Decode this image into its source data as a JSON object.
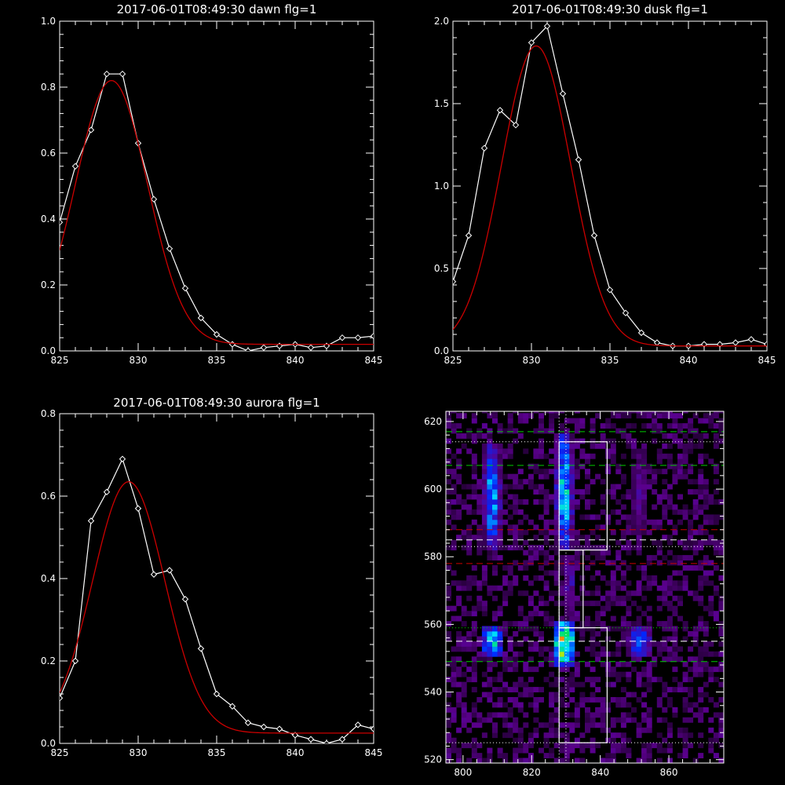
{
  "chart_data": [
    {
      "type": "line",
      "title": "2017-06-01T08:49:30 dawn flg=1",
      "xlim": [
        825,
        845
      ],
      "ylim": [
        0,
        1.0
      ],
      "xticks": [
        825,
        830,
        835,
        840,
        845
      ],
      "yticks": [
        0.0,
        0.2,
        0.4,
        0.6,
        0.8,
        1.0
      ],
      "xtick_labels": [
        "825",
        "830",
        "835",
        "840",
        "845"
      ],
      "ytick_labels": [
        "0.0",
        "0.2",
        "0.4",
        "0.6",
        "0.8",
        "1.0"
      ],
      "grid": false,
      "series": [
        {
          "color": "#ffffff",
          "marker": "diamond",
          "x": [
            825,
            826,
            827,
            828,
            829,
            830,
            831,
            832,
            833,
            834,
            835,
            836,
            837,
            838,
            839,
            840,
            841,
            842,
            843,
            844,
            845
          ],
          "y": [
            0.39,
            0.56,
            0.67,
            0.84,
            0.84,
            0.63,
            0.46,
            0.31,
            0.19,
            0.1,
            0.05,
            0.02,
            0.0,
            0.01,
            0.015,
            0.02,
            0.01,
            0.015,
            0.04,
            0.04,
            0.045
          ]
        },
        {
          "color": "#cc0000",
          "marker": "none",
          "fit": {
            "amplitude": 0.8,
            "center": 828.3,
            "sigma": 2.3,
            "baseline": 0.02
          }
        }
      ]
    },
    {
      "type": "line",
      "title": "2017-06-01T08:49:30 dusk flg=1",
      "xlim": [
        825,
        845
      ],
      "ylim": [
        0,
        2.0
      ],
      "xticks": [
        825,
        830,
        835,
        840,
        845
      ],
      "yticks": [
        0.0,
        0.5,
        1.0,
        1.5,
        2.0
      ],
      "xtick_labels": [
        "825",
        "830",
        "835",
        "840",
        "845"
      ],
      "ytick_labels": [
        "0.0",
        "0.5",
        "1.0",
        "1.5",
        "2.0"
      ],
      "grid": false,
      "series": [
        {
          "color": "#ffffff",
          "marker": "diamond",
          "x": [
            825,
            826,
            827,
            828,
            829,
            830,
            831,
            832,
            833,
            834,
            835,
            836,
            837,
            838,
            839,
            840,
            841,
            842,
            843,
            844,
            845
          ],
          "y": [
            0.42,
            0.7,
            1.23,
            1.46,
            1.37,
            1.87,
            1.97,
            1.56,
            1.16,
            0.7,
            0.37,
            0.23,
            0.11,
            0.05,
            0.03,
            0.03,
            0.04,
            0.04,
            0.05,
            0.07,
            0.04
          ]
        },
        {
          "color": "#cc0000",
          "marker": "none",
          "fit": {
            "amplitude": 1.82,
            "center": 830.3,
            "sigma": 2.2,
            "baseline": 0.03
          }
        }
      ]
    },
    {
      "type": "line",
      "title": "2017-06-01T08:49:30 aurora flg=1",
      "xlim": [
        825,
        845
      ],
      "ylim": [
        0,
        0.8
      ],
      "xticks": [
        825,
        830,
        835,
        840,
        845
      ],
      "yticks": [
        0.0,
        0.2,
        0.4,
        0.6,
        0.8
      ],
      "xtick_labels": [
        "825",
        "830",
        "835",
        "840",
        "845"
      ],
      "ytick_labels": [
        "0.0",
        "0.2",
        "0.4",
        "0.6",
        "0.8"
      ],
      "grid": false,
      "series": [
        {
          "color": "#ffffff",
          "marker": "diamond",
          "x": [
            825,
            826,
            827,
            828,
            829,
            830,
            831,
            832,
            833,
            834,
            835,
            836,
            837,
            838,
            839,
            840,
            841,
            842,
            843,
            844,
            845
          ],
          "y": [
            0.11,
            0.2,
            0.54,
            0.61,
            0.69,
            0.57,
            0.41,
            0.42,
            0.35,
            0.23,
            0.12,
            0.09,
            0.05,
            0.04,
            0.035,
            0.02,
            0.01,
            0.0,
            0.01,
            0.045,
            0.035
          ]
        },
        {
          "color": "#cc0000",
          "marker": "none",
          "fit": {
            "amplitude": 0.61,
            "center": 829.4,
            "sigma": 2.3,
            "baseline": 0.025
          }
        }
      ]
    },
    {
      "type": "heatmap",
      "title": "",
      "xlim": [
        795,
        876
      ],
      "ylim": [
        519,
        623
      ],
      "xticks": [
        800,
        820,
        840,
        860
      ],
      "yticks": [
        520,
        540,
        560,
        580,
        600,
        620
      ],
      "xtick_labels": [
        "800",
        "820",
        "840",
        "860"
      ],
      "ytick_labels": [
        "520",
        "540",
        "560",
        "580",
        "600",
        "620"
      ],
      "grid": false,
      "colormap": "rainbow-on-black",
      "blobs": [
        {
          "x0": 806,
          "x1": 811,
          "y0": 582,
          "y1": 614,
          "intensity": 0.55
        },
        {
          "x0": 827,
          "x1": 832,
          "y0": 582,
          "y1": 616,
          "intensity": 0.65
        },
        {
          "x0": 849,
          "x1": 854,
          "y0": 586,
          "y1": 612,
          "intensity": 0.2
        },
        {
          "x0": 805,
          "x1": 812,
          "y0": 550,
          "y1": 560,
          "intensity": 0.65
        },
        {
          "x0": 826,
          "x1": 833,
          "y0": 548,
          "y1": 561,
          "intensity": 0.95
        },
        {
          "x0": 848,
          "x1": 855,
          "y0": 550,
          "y1": 560,
          "intensity": 0.45
        },
        {
          "x0": 829,
          "x1": 833,
          "y0": 561,
          "y1": 581,
          "intensity": 0.25
        }
      ],
      "dotted_vertical_lines": {
        "color": "#ffffff",
        "x": [
          828,
          830
        ]
      },
      "dotted_horizontal_lines": [
        {
          "color": "#ffffff",
          "y": 614
        },
        {
          "color": "#ffffff",
          "y": 583
        },
        {
          "color": "#ffffff",
          "y": 525
        },
        {
          "color": "#00cc00",
          "y": 559
        }
      ],
      "dashed_horizontal_lines": [
        {
          "color": "#00cc00",
          "y": 617
        },
        {
          "color": "#00cc00",
          "y": 607
        },
        {
          "color": "#cc0000",
          "y": 588
        },
        {
          "color": "#ffffff",
          "y": 585
        },
        {
          "color": "#cc0000",
          "y": 578
        },
        {
          "color": "#ffffff",
          "y": 555
        },
        {
          "color": "#00cc00",
          "y": 549
        }
      ],
      "boxes": [
        {
          "color": "#ffffff",
          "x0": 828,
          "x1": 842,
          "y0": 582,
          "y1": 614
        },
        {
          "color": "#ffffff",
          "x0": 828,
          "x1": 835,
          "y0": 559,
          "y1": 582
        },
        {
          "color": "#ffffff",
          "x0": 828,
          "x1": 842,
          "y0": 525,
          "y1": 559
        }
      ]
    }
  ]
}
